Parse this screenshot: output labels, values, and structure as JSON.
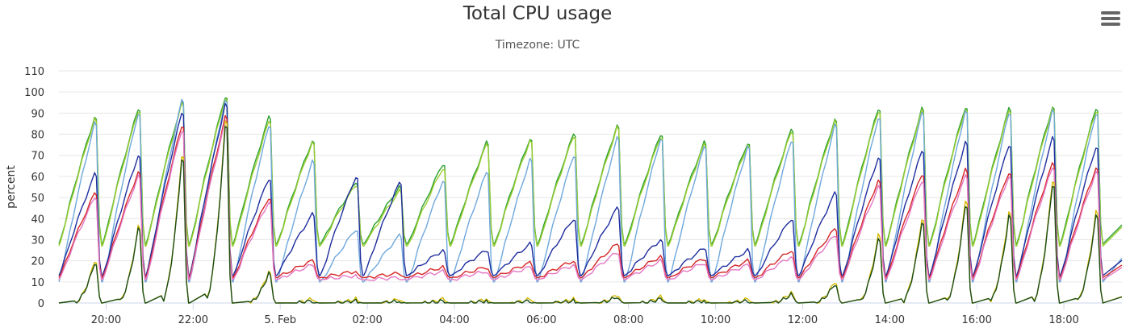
{
  "header": {
    "title": "Total CPU usage",
    "subtitle": "Timezone: UTC",
    "menu_icon": "hamburger-menu-icon"
  },
  "chart_data": {
    "type": "line",
    "title": "Total CPU usage",
    "subtitle": "Timezone: UTC",
    "xlabel": "",
    "ylabel": "percent",
    "ylim": [
      0,
      110
    ],
    "yticks": [
      0,
      10,
      20,
      30,
      40,
      50,
      60,
      70,
      80,
      90,
      100,
      110
    ],
    "xlim": [
      "2023-02-04 18:55",
      "2023-02-05 19:20"
    ],
    "xticks": [
      {
        "t": "2023-02-04 20:00",
        "label": "20:00"
      },
      {
        "t": "2023-02-04 22:00",
        "label": "22:00"
      },
      {
        "t": "2023-02-05 00:00",
        "label": "5. Feb"
      },
      {
        "t": "2023-02-05 02:00",
        "label": "02:00"
      },
      {
        "t": "2023-02-05 04:00",
        "label": "04:00"
      },
      {
        "t": "2023-02-05 06:00",
        "label": "06:00"
      },
      {
        "t": "2023-02-05 08:00",
        "label": "08:00"
      },
      {
        "t": "2023-02-05 10:00",
        "label": "10:00"
      },
      {
        "t": "2023-02-05 12:00",
        "label": "12:00"
      },
      {
        "t": "2023-02-05 14:00",
        "label": "14:00"
      },
      {
        "t": "2023-02-05 16:00",
        "label": "16:00"
      },
      {
        "t": "2023-02-05 18:00",
        "label": "18:00"
      }
    ],
    "grid": true,
    "cycle_starts": [
      "2023-02-04 18:55",
      "2023-02-04 19:55",
      "2023-02-04 20:55",
      "2023-02-04 21:55",
      "2023-02-04 22:55",
      "2023-02-04 23:55",
      "2023-02-05 00:55",
      "2023-02-05 01:55",
      "2023-02-05 02:55",
      "2023-02-05 03:55",
      "2023-02-05 04:55",
      "2023-02-05 05:55",
      "2023-02-05 06:55",
      "2023-02-05 07:55",
      "2023-02-05 08:55",
      "2023-02-05 09:55",
      "2023-02-05 10:55",
      "2023-02-05 11:55",
      "2023-02-05 12:55",
      "2023-02-05 13:55",
      "2023-02-05 14:55",
      "2023-02-05 15:55",
      "2023-02-05 16:55",
      "2023-02-05 17:55"
    ],
    "series": [
      {
        "color": "#2ca02c",
        "base": 28,
        "peaks": [
          88,
          92,
          95,
          98,
          88,
          77,
          57,
          55,
          66,
          76,
          78,
          80,
          84,
          80,
          76,
          76,
          82,
          87,
          92,
          92,
          93,
          92,
          93,
          92
        ]
      },
      {
        "color": "#9acd32",
        "base": 27,
        "peaks": [
          87,
          91,
          94,
          97,
          86,
          76,
          56,
          53,
          64,
          75,
          77,
          79,
          83,
          79,
          75,
          75,
          81,
          86,
          91,
          91,
          92,
          91,
          92,
          91
        ]
      },
      {
        "color": "#6fa8dc",
        "base": 10,
        "peaks": [
          85,
          90,
          96,
          96,
          84,
          67,
          35,
          32,
          58,
          62,
          68,
          70,
          78,
          78,
          74,
          74,
          77,
          84,
          88,
          90,
          91,
          90,
          91,
          90
        ]
      },
      {
        "color": "#1f2e9e",
        "base": 13,
        "peaks": [
          61,
          70,
          90,
          94,
          59,
          42,
          60,
          57,
          25,
          25,
          28,
          40,
          45,
          30,
          26,
          25,
          40,
          52,
          69,
          72,
          76,
          75,
          78,
          74
        ]
      },
      {
        "color": "#d62728",
        "base": 12,
        "peaks": [
          52,
          62,
          84,
          88,
          50,
          20,
          15,
          14,
          17,
          17,
          19,
          20,
          28,
          22,
          21,
          20,
          25,
          35,
          58,
          61,
          63,
          62,
          66,
          64
        ]
      },
      {
        "color": "#e377c2",
        "base": 11,
        "peaks": [
          50,
          60,
          82,
          86,
          48,
          18,
          13,
          12,
          15,
          15,
          17,
          18,
          24,
          20,
          19,
          18,
          22,
          32,
          55,
          58,
          60,
          60,
          64,
          62
        ]
      },
      {
        "color": "#d4b800",
        "base": 0,
        "peaks": [
          20,
          36,
          70,
          86,
          15,
          2,
          2,
          2,
          2,
          2,
          2,
          2,
          4,
          3,
          2,
          2,
          5,
          10,
          32,
          40,
          48,
          43,
          58,
          43
        ]
      },
      {
        "color": "#1a4d1a",
        "base": 0,
        "peaks": [
          19,
          35,
          68,
          84,
          14,
          1,
          1,
          1,
          1,
          1,
          1,
          1,
          3,
          2,
          1,
          1,
          4,
          9,
          30,
          38,
          46,
          41,
          56,
          41
        ]
      }
    ]
  }
}
